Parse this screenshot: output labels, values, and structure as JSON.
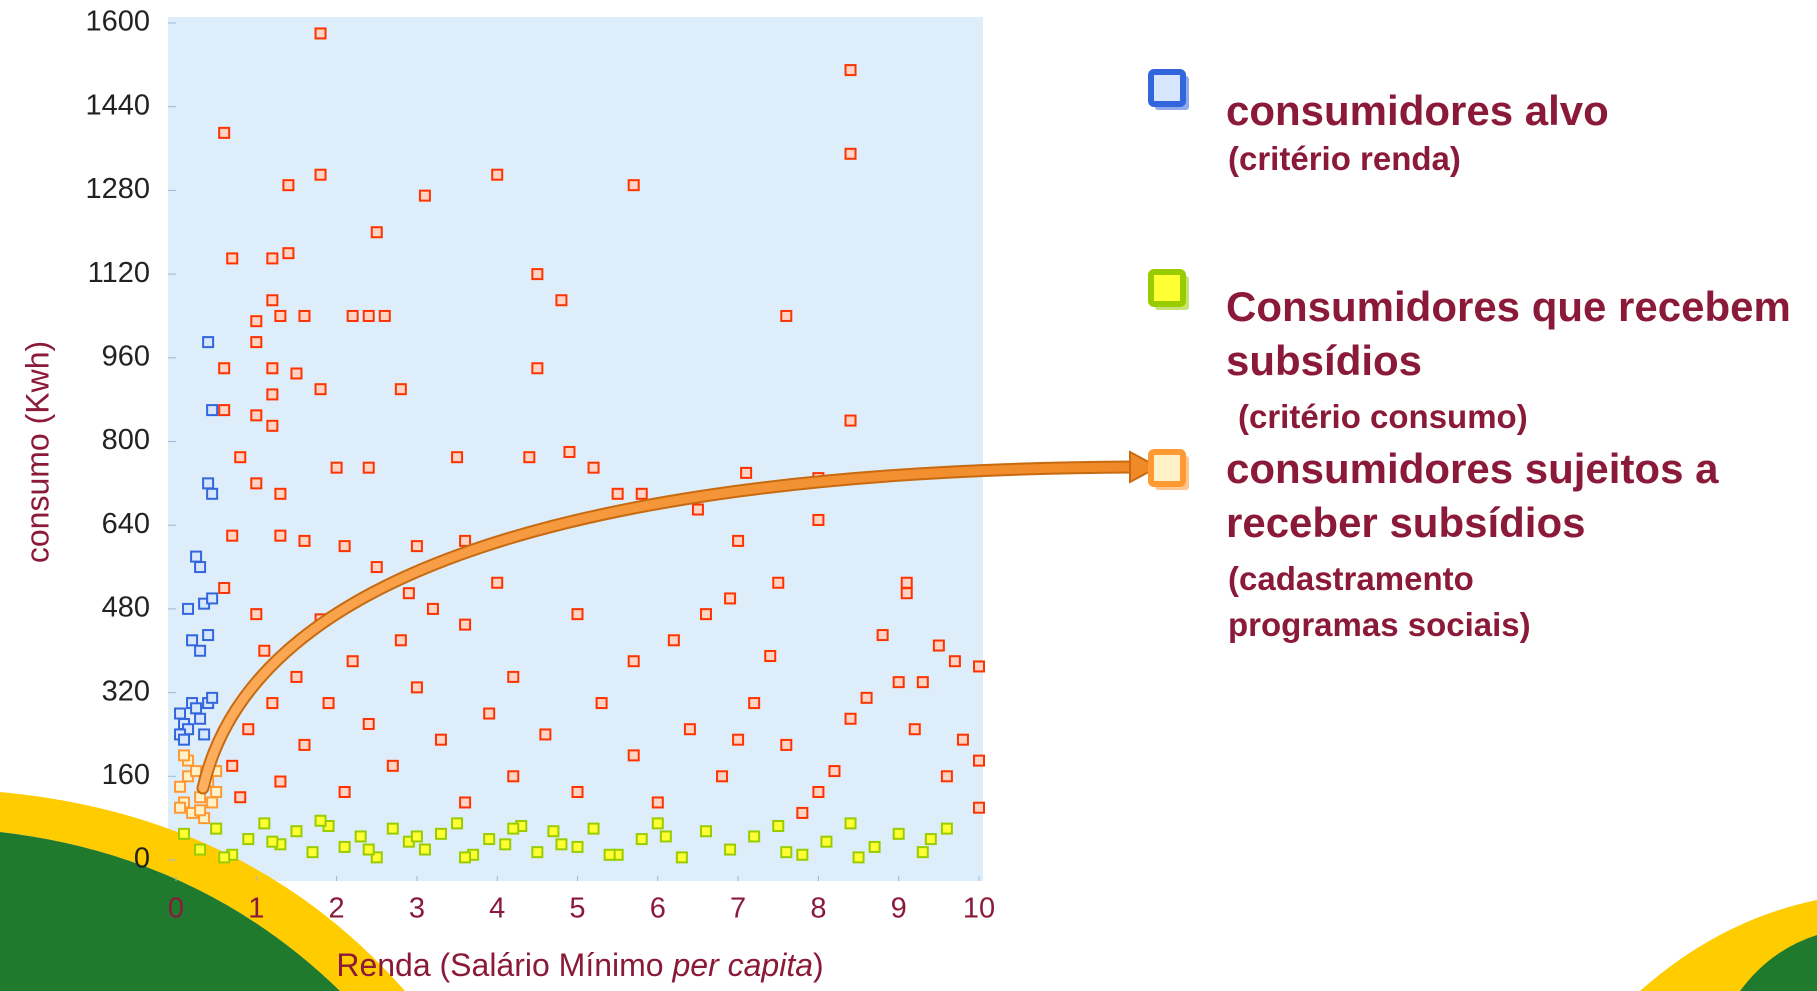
{
  "chart_data": {
    "type": "scatter",
    "xlabel_parts": [
      "Renda (Salário Mínimo ",
      "per capita",
      ")"
    ],
    "ylabel": "consumo (Kwh)",
    "xlim": [
      0,
      10
    ],
    "ylim": [
      0,
      1600
    ],
    "xticks": [
      0,
      1,
      2,
      3,
      4,
      5,
      6,
      7,
      8,
      9,
      10
    ],
    "yticks": [
      0,
      160,
      320,
      480,
      640,
      800,
      960,
      1120,
      1280,
      1440,
      1600
    ],
    "grid": false,
    "legend_position": "right",
    "series": [
      {
        "name": "consumidores alvo",
        "criterion": "(critério renda)",
        "color": "#3366dd",
        "fill": "#d6e6ff",
        "x": [
          0.05,
          0.1,
          0.15,
          0.2,
          0.25,
          0.3,
          0.35,
          0.4,
          0.45,
          0.05,
          0.1,
          0.2,
          0.3,
          0.4,
          0.25,
          0.35,
          0.45,
          0.4,
          0.45,
          0.3,
          0.15,
          0.4,
          0.45
        ],
        "values": [
          280,
          260,
          250,
          300,
          290,
          270,
          240,
          300,
          310,
          240,
          230,
          420,
          400,
          430,
          580,
          490,
          500,
          720,
          700,
          560,
          480,
          990,
          860
        ]
      },
      {
        "name": "Consumidores que recebem subsídios",
        "criterion": "(critério consumo)",
        "color": "#99cc00",
        "fill": "#ffff33",
        "x": [
          0.1,
          0.3,
          0.5,
          0.7,
          0.9,
          1.1,
          1.3,
          1.5,
          1.7,
          1.9,
          2.1,
          2.3,
          2.5,
          2.7,
          2.9,
          3.1,
          3.3,
          3.5,
          3.7,
          3.9,
          4.1,
          4.3,
          4.5,
          4.7,
          5,
          5.2,
          5.5,
          5.8,
          6,
          6.3,
          6.6,
          6.9,
          7.2,
          7.5,
          7.8,
          8.1,
          8.4,
          8.7,
          9,
          9.3,
          9.6,
          0.6,
          1.2,
          1.8,
          2.4,
          3,
          3.6,
          4.2,
          4.8,
          5.4,
          6.1,
          7.6,
          8.5,
          9.4
        ],
        "values": [
          50,
          20,
          60,
          10,
          40,
          70,
          30,
          55,
          15,
          65,
          25,
          45,
          5,
          60,
          35,
          20,
          50,
          70,
          10,
          40,
          30,
          65,
          15,
          55,
          25,
          60,
          10,
          40,
          70,
          5,
          55,
          20,
          45,
          65,
          10,
          35,
          70,
          25,
          50,
          15,
          60,
          5,
          35,
          75,
          20,
          45,
          5,
          60,
          30,
          10,
          45,
          15,
          5,
          40
        ]
      },
      {
        "name": "consumidores sujeitos a receber subsídios",
        "criterion": "(cadastramento programas sociais)",
        "color": "#ff9933",
        "fill": "#fff2c8",
        "x": [
          0.05,
          0.1,
          0.15,
          0.2,
          0.3,
          0.4,
          0.5,
          0.05,
          0.15,
          0.25,
          0.35,
          0.45,
          0.1,
          0.3,
          0.5
        ],
        "values": [
          140,
          110,
          160,
          90,
          120,
          150,
          130,
          100,
          190,
          170,
          80,
          110,
          200,
          95,
          170
        ]
      },
      {
        "color": "#ff3300",
        "fill": "#ffd4c4",
        "x": [
          1.8,
          0.6,
          1.4,
          1.8,
          3.1,
          4.0,
          5.7,
          2.5,
          0.7,
          1.2,
          1.4,
          4.5,
          4.8,
          1.2,
          1.3,
          1.6,
          2.2,
          2.4,
          2.6,
          7.6,
          1.0,
          1.0,
          0.6,
          1.2,
          1.5,
          1.8,
          2.8,
          1.2,
          4.5,
          8.4,
          8.4,
          8.4,
          0.6,
          1.0,
          1.2,
          0.8,
          3.5,
          4.4,
          4.9,
          5.2,
          2.0,
          2.4,
          7.1,
          8.0,
          1.0,
          1.3,
          5.5,
          5.8,
          6.5,
          8.0,
          0.7,
          1.3,
          1.6,
          2.1,
          3.0,
          3.6,
          7.0,
          6.9,
          7.5,
          9.1,
          9.1,
          8.8,
          9.5,
          9.7,
          10.0,
          9.0,
          9.3,
          8.6,
          9.2,
          9.8,
          10.0,
          10.0,
          9.6,
          8.2,
          7.8,
          7.0,
          6.2,
          5.7,
          4.2,
          3.6,
          2.8,
          2.2,
          1.8,
          1.5,
          1.2,
          0.9,
          0.7,
          0.8,
          1.1,
          1.3,
          1.6,
          1.9,
          2.1,
          2.4,
          2.7,
          3.0,
          3.3,
          3.6,
          3.9,
          4.2,
          4.6,
          5.0,
          5.3,
          5.7,
          6.0,
          6.4,
          6.8,
          7.2,
          7.6,
          8.0,
          8.4,
          2.9,
          4.0,
          5.0,
          6.6,
          0.6,
          2.5,
          3.2,
          1.0,
          7.4
        ],
        "values": [
          1580,
          1390,
          1290,
          1310,
          1270,
          1310,
          1290,
          1200,
          1150,
          1150,
          1160,
          1120,
          1070,
          1070,
          1040,
          1040,
          1040,
          1040,
          1040,
          1040,
          1030,
          990,
          940,
          940,
          930,
          900,
          900,
          890,
          940,
          1510,
          1350,
          840,
          860,
          850,
          830,
          770,
          770,
          770,
          780,
          750,
          750,
          750,
          740,
          730,
          720,
          700,
          700,
          700,
          670,
          650,
          620,
          620,
          610,
          600,
          600,
          610,
          610,
          500,
          530,
          530,
          510,
          430,
          410,
          380,
          370,
          340,
          340,
          310,
          250,
          230,
          190,
          100,
          160,
          170,
          90,
          230,
          420,
          380,
          350,
          450,
          420,
          380,
          460,
          350,
          300,
          250,
          180,
          120,
          400,
          150,
          220,
          300,
          130,
          260,
          180,
          330,
          230,
          110,
          280,
          160,
          240,
          130,
          300,
          200,
          110,
          250,
          160,
          300,
          220,
          130,
          270,
          510,
          530,
          470,
          470,
          520,
          560,
          480,
          470,
          390
        ]
      }
    ]
  }
}
